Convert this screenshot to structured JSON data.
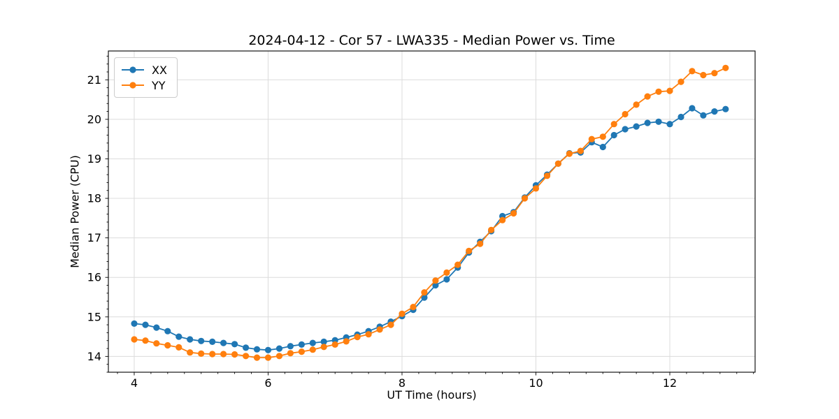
{
  "chart_data": {
    "type": "line",
    "title": "2024-04-12 - Cor 57 - LWA335 - Median Power vs. Time",
    "xlabel": "UT Time (hours)",
    "ylabel": "Median Power (CPU)",
    "xlim": [
      3.614,
      13.274
    ],
    "ylim": [
      13.6,
      21.73
    ],
    "x_major_ticks": [
      4,
      6,
      8,
      10,
      12
    ],
    "x_minor_step": 0.25,
    "y_major_ticks": [
      14,
      15,
      16,
      17,
      18,
      19,
      20,
      21
    ],
    "y_minor_step": 0.2,
    "grid": "major-both",
    "grid_color": "#dcdcdc",
    "background": "#ffffff",
    "legend_position": "upper-left",
    "x": [
      4.0,
      4.167,
      4.333,
      4.5,
      4.667,
      4.833,
      5.0,
      5.167,
      5.333,
      5.5,
      5.667,
      5.833,
      6.0,
      6.167,
      6.333,
      6.5,
      6.667,
      6.833,
      7.0,
      7.167,
      7.333,
      7.5,
      7.667,
      7.833,
      8.0,
      8.167,
      8.333,
      8.5,
      8.667,
      8.833,
      9.0,
      9.167,
      9.333,
      9.5,
      9.667,
      9.833,
      10.0,
      10.167,
      10.333,
      10.5,
      10.667,
      10.833,
      11.0,
      11.167,
      11.333,
      11.5,
      11.667,
      11.833,
      12.0,
      12.167,
      12.333,
      12.5,
      12.667,
      12.833
    ],
    "series": [
      {
        "name": "XX",
        "color": "#1f77b4",
        "values": [
          14.83,
          14.8,
          14.73,
          14.64,
          14.5,
          14.43,
          14.39,
          14.37,
          14.34,
          14.31,
          14.22,
          14.18,
          14.16,
          14.2,
          14.26,
          14.3,
          14.34,
          14.37,
          14.41,
          14.48,
          14.55,
          14.64,
          14.75,
          14.88,
          15.02,
          15.18,
          15.49,
          15.8,
          15.95,
          16.25,
          16.63,
          16.9,
          17.17,
          17.55,
          17.65,
          18.02,
          18.33,
          18.6,
          18.88,
          19.14,
          19.16,
          19.42,
          19.3,
          19.6,
          19.75,
          19.82,
          19.91,
          19.94,
          19.88,
          20.06,
          20.28,
          20.1,
          20.2,
          20.26
        ]
      },
      {
        "name": "YY",
        "color": "#ff7f0e",
        "values": [
          14.43,
          14.4,
          14.33,
          14.28,
          14.23,
          14.1,
          14.07,
          14.06,
          14.06,
          14.05,
          14.01,
          13.97,
          13.97,
          14.01,
          14.08,
          14.12,
          14.17,
          14.24,
          14.3,
          14.38,
          14.49,
          14.56,
          14.68,
          14.8,
          15.08,
          15.25,
          15.62,
          15.92,
          16.12,
          16.32,
          16.67,
          16.85,
          17.2,
          17.45,
          17.62,
          18.0,
          18.25,
          18.57,
          18.88,
          19.13,
          19.2,
          19.5,
          19.56,
          19.88,
          20.13,
          20.37,
          20.58,
          20.7,
          20.72,
          20.95,
          21.22,
          21.12,
          21.17,
          21.3
        ]
      }
    ]
  }
}
